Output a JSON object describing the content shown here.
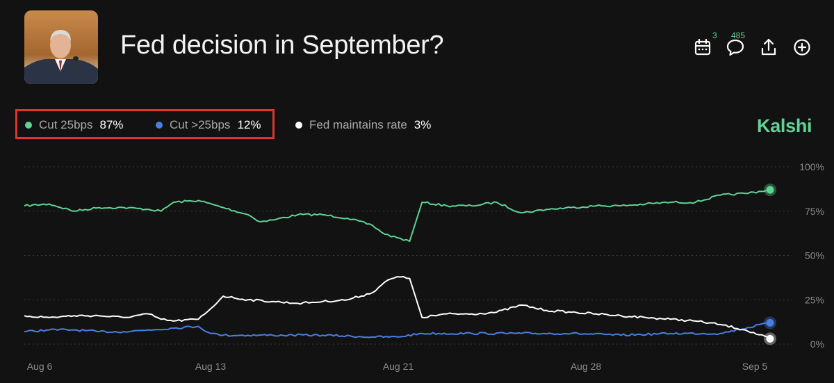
{
  "header": {
    "title": "Fed decision in September?",
    "thumbnail_icon": "speaker-portrait-image",
    "toolbar": [
      {
        "name": "calendar-icon",
        "badge": "3"
      },
      {
        "name": "comment-icon",
        "badge": "485"
      },
      {
        "name": "share-icon",
        "badge": ""
      },
      {
        "name": "add-icon",
        "badge": ""
      }
    ]
  },
  "brand": "Kalshi",
  "colors": {
    "background": "#121212",
    "green": "#5fd394",
    "blue": "#4a7fe0",
    "white": "#ffffff",
    "highlight": "#e0352f",
    "grid": "#3a3a3a"
  },
  "chart_data": {
    "type": "line",
    "title": "",
    "xlabel": "",
    "ylabel": "",
    "ylim": [
      0,
      100
    ],
    "y_ticks": [
      "100%",
      "75%",
      "50%",
      "25%",
      "0%"
    ],
    "x_ticks": [
      "Aug 6",
      "Aug 13",
      "Aug 21",
      "Aug 28",
      "Sep 5"
    ],
    "x_range": [
      "2024-08-06",
      "2024-09-05"
    ],
    "grid": true,
    "legend_position": "top-left",
    "series": [
      {
        "name": "Cut 25bps",
        "label": "87%",
        "color": "#5fd394",
        "points": [
          [
            "2024-08-06",
            78
          ],
          [
            "2024-08-07",
            79
          ],
          [
            "2024-08-08",
            75
          ],
          [
            "2024-08-09",
            77
          ],
          [
            "2024-08-10",
            77
          ],
          [
            "2024-08-11",
            76
          ],
          [
            "2024-08-11T12:00",
            75
          ],
          [
            "2024-08-12",
            80
          ],
          [
            "2024-08-13",
            81
          ],
          [
            "2024-08-14",
            77
          ],
          [
            "2024-08-15",
            73
          ],
          [
            "2024-08-15T12:00",
            69
          ],
          [
            "2024-08-16",
            70
          ],
          [
            "2024-08-17",
            73
          ],
          [
            "2024-08-18",
            73
          ],
          [
            "2024-08-19",
            71
          ],
          [
            "2024-08-20",
            67
          ],
          [
            "2024-08-20T12:00",
            62
          ],
          [
            "2024-08-21",
            60
          ],
          [
            "2024-08-21T12:00",
            58
          ],
          [
            "2024-08-22",
            80
          ],
          [
            "2024-08-23",
            78
          ],
          [
            "2024-08-24",
            78
          ],
          [
            "2024-08-25",
            80
          ],
          [
            "2024-08-26",
            74
          ],
          [
            "2024-08-27",
            76
          ],
          [
            "2024-08-28",
            77
          ],
          [
            "2024-08-29",
            78
          ],
          [
            "2024-08-30",
            78
          ],
          [
            "2024-08-31",
            79
          ],
          [
            "2024-09-01",
            80
          ],
          [
            "2024-09-02",
            80
          ],
          [
            "2024-09-03",
            84
          ],
          [
            "2024-09-04",
            85
          ],
          [
            "2024-09-05",
            87
          ]
        ]
      },
      {
        "name": "Cut >25bps",
        "label": "12%",
        "color": "#4a7fe0",
        "points": [
          [
            "2024-08-06",
            7
          ],
          [
            "2024-08-07",
            8
          ],
          [
            "2024-08-08",
            8
          ],
          [
            "2024-08-09",
            7
          ],
          [
            "2024-08-10",
            7
          ],
          [
            "2024-08-11",
            8
          ],
          [
            "2024-08-12",
            9
          ],
          [
            "2024-08-13",
            10
          ],
          [
            "2024-08-13T12:00",
            6
          ],
          [
            "2024-08-14",
            5
          ],
          [
            "2024-08-16",
            5
          ],
          [
            "2024-08-18",
            5
          ],
          [
            "2024-08-20",
            4
          ],
          [
            "2024-08-21",
            4
          ],
          [
            "2024-08-22",
            6
          ],
          [
            "2024-08-24",
            6
          ],
          [
            "2024-08-26",
            6
          ],
          [
            "2024-08-28",
            6
          ],
          [
            "2024-08-30",
            5
          ],
          [
            "2024-09-01",
            6
          ],
          [
            "2024-09-03",
            6
          ],
          [
            "2024-09-05",
            12
          ]
        ]
      },
      {
        "name": "Fed maintains rate",
        "label": "3%",
        "color": "#ffffff",
        "points": [
          [
            "2024-08-06",
            16
          ],
          [
            "2024-08-07",
            15
          ],
          [
            "2024-08-08",
            16
          ],
          [
            "2024-08-09",
            16
          ],
          [
            "2024-08-10",
            15
          ],
          [
            "2024-08-11",
            17
          ],
          [
            "2024-08-11T12:00",
            14
          ],
          [
            "2024-08-12",
            13
          ],
          [
            "2024-08-13",
            14
          ],
          [
            "2024-08-13T12:00",
            20
          ],
          [
            "2024-08-14",
            27
          ],
          [
            "2024-08-15",
            25
          ],
          [
            "2024-08-16",
            24
          ],
          [
            "2024-08-17",
            23
          ],
          [
            "2024-08-18",
            24
          ],
          [
            "2024-08-19",
            25
          ],
          [
            "2024-08-20",
            29
          ],
          [
            "2024-08-20T12:00",
            35
          ],
          [
            "2024-08-21",
            38
          ],
          [
            "2024-08-21T12:00",
            37
          ],
          [
            "2024-08-22",
            15
          ],
          [
            "2024-08-23",
            17
          ],
          [
            "2024-08-24",
            17
          ],
          [
            "2024-08-25",
            18
          ],
          [
            "2024-08-26",
            22
          ],
          [
            "2024-08-27",
            19
          ],
          [
            "2024-08-28",
            18
          ],
          [
            "2024-08-29",
            17
          ],
          [
            "2024-08-30",
            16
          ],
          [
            "2024-08-31",
            15
          ],
          [
            "2024-09-01",
            14
          ],
          [
            "2024-09-02",
            13
          ],
          [
            "2024-09-03",
            11
          ],
          [
            "2024-09-04",
            8
          ],
          [
            "2024-09-05",
            3
          ]
        ]
      }
    ]
  }
}
